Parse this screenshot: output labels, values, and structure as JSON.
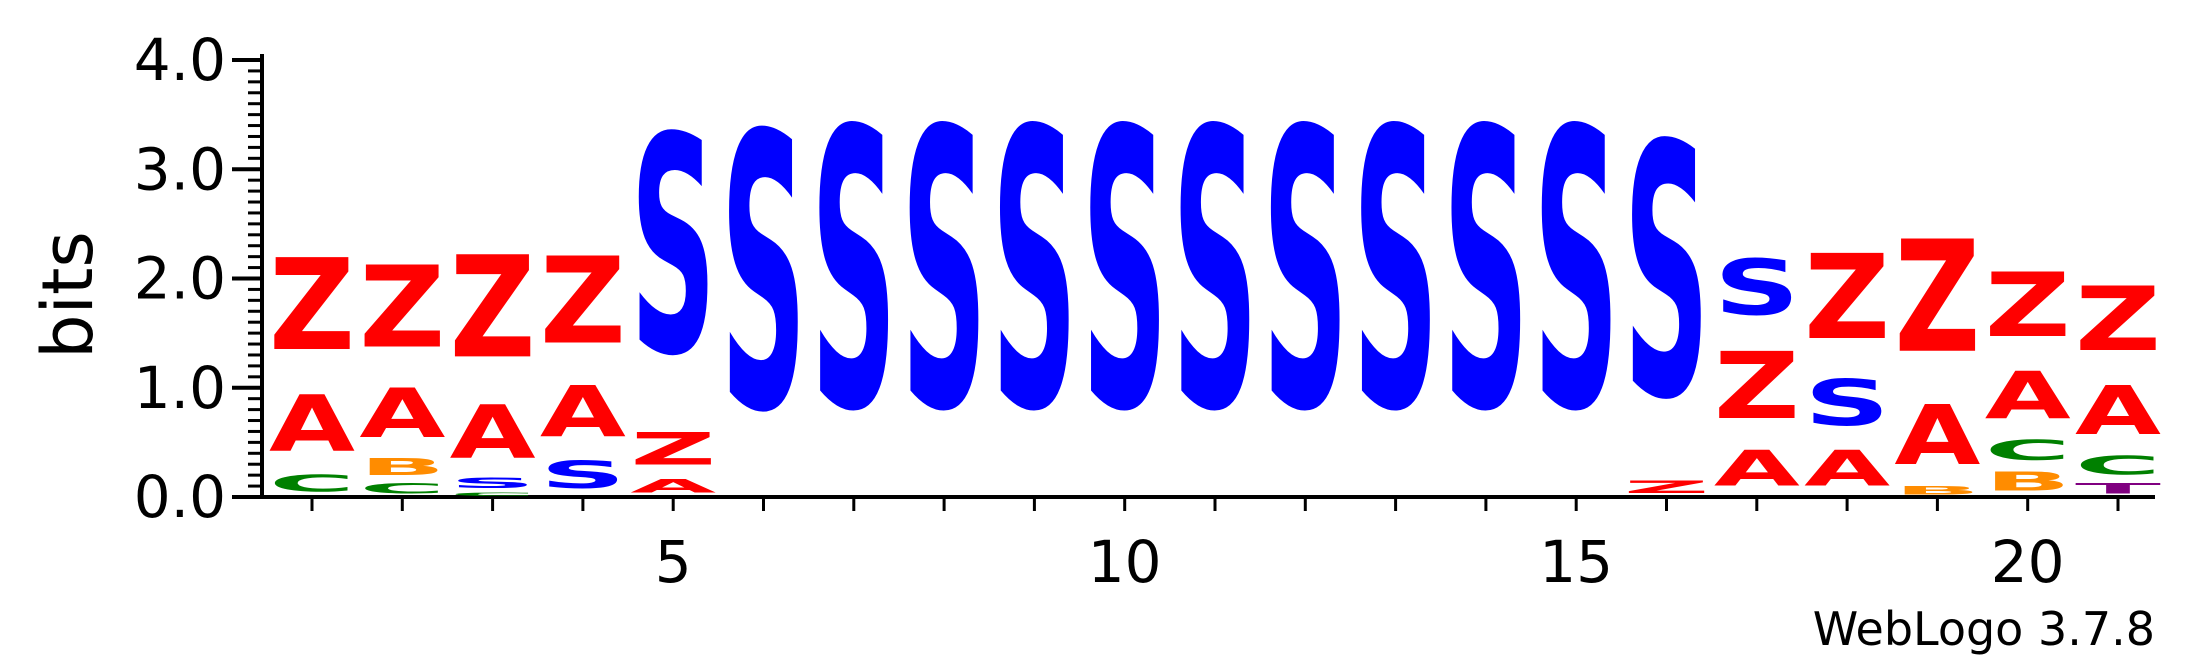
{
  "chart_data": {
    "type": "sequence-logo",
    "ylabel": "bits",
    "ylim": [
      0,
      4.0
    ],
    "y_ticks": [
      "0.0",
      "1.0",
      "2.0",
      "3.0",
      "4.0"
    ],
    "x_tick_labels": [
      {
        "pos": 5,
        "label": "5"
      },
      {
        "pos": 10,
        "label": "10"
      },
      {
        "pos": 15,
        "label": "15"
      },
      {
        "pos": 20,
        "label": "20"
      }
    ],
    "footer": "WebLogo 3.7.8",
    "colors": {
      "Z": "#ff0000",
      "A": "#ff0000",
      "S": "#0000ff",
      "C": "#008000",
      "B": "#ff8c00",
      "T": "#800080",
      "dot": "#ff0000"
    },
    "positions": [
      {
        "pos": 1,
        "stack": [
          {
            "letter": "C",
            "bits": 0.25
          },
          {
            "letter": "A",
            "bits": 0.83
          },
          {
            "letter": "Z",
            "bits": 1.35
          }
        ]
      },
      {
        "pos": 2,
        "stack": [
          {
            "letter": "C",
            "bits": 0.15
          },
          {
            "letter": "B",
            "bits": 0.25
          },
          {
            "letter": "A",
            "bits": 0.73
          },
          {
            "letter": "Z",
            "bits": 1.2
          }
        ]
      },
      {
        "pos": 3,
        "stack": [
          {
            "letter": "C",
            "bits": 0.05
          },
          {
            "letter": "S",
            "bits": 0.15
          },
          {
            "letter": "A",
            "bits": 0.78
          },
          {
            "letter": "Z",
            "bits": 1.5
          }
        ]
      },
      {
        "pos": 4,
        "stack": [
          {
            "letter": "S",
            "bits": 0.4
          },
          {
            "letter": "A",
            "bits": 0.75
          },
          {
            "letter": "Z",
            "bits": 1.28
          }
        ]
      },
      {
        "pos": 5,
        "stack": [
          {
            "letter": "A",
            "bits": 0.2
          },
          {
            "letter": "Z",
            "bits": 0.48
          },
          {
            "letter": "S",
            "bits": 3.2
          }
        ]
      },
      {
        "pos": 6,
        "stack": [
          {
            "letter": "S",
            "bits": 4.05
          }
        ]
      },
      {
        "pos": 7,
        "stack": [
          {
            "letter": "S",
            "bits": 4.1
          }
        ]
      },
      {
        "pos": 8,
        "stack": [
          {
            "letter": "S",
            "bits": 4.1
          }
        ]
      },
      {
        "pos": 9,
        "stack": [
          {
            "letter": "S",
            "bits": 4.1
          }
        ]
      },
      {
        "pos": 10,
        "stack": [
          {
            "letter": "S",
            "bits": 4.1
          }
        ]
      },
      {
        "pos": 11,
        "stack": [
          {
            "letter": "S",
            "bits": 4.1
          }
        ]
      },
      {
        "pos": 12,
        "stack": [
          {
            "letter": "S",
            "bits": 4.1
          }
        ]
      },
      {
        "pos": 13,
        "stack": [
          {
            "letter": "S",
            "bits": 4.1
          }
        ]
      },
      {
        "pos": 14,
        "stack": [
          {
            "letter": "S",
            "bits": 4.1
          }
        ]
      },
      {
        "pos": 15,
        "stack": [
          {
            "letter": "S",
            "bits": 4.1
          }
        ]
      },
      {
        "pos": 16,
        "stack": [
          {
            "letter": "Z",
            "bits": 0.18
          },
          {
            "letter": "S",
            "bits": 3.72
          }
        ]
      },
      {
        "pos": 17,
        "stack": [
          {
            "letter": "A",
            "bits": 0.52
          },
          {
            "letter": "Z",
            "bits": 0.98
          },
          {
            "letter": "S",
            "bits": 0.82
          }
        ]
      },
      {
        "pos": 18,
        "stack": [
          {
            "letter": "A",
            "bits": 0.52
          },
          {
            "letter": "S",
            "bits": 0.68
          },
          {
            "letter": "Z",
            "bits": 1.25
          }
        ]
      },
      {
        "pos": 19,
        "stack": [
          {
            "letter": "B",
            "bits": 0.12
          },
          {
            "letter": "A",
            "bits": 0.88
          },
          {
            "letter": "Z",
            "bits": 1.65
          }
        ]
      },
      {
        "pos": 20,
        "stack": [
          {
            "letter": "B",
            "bits": 0.28
          },
          {
            "letter": "C",
            "bits": 0.3
          },
          {
            "letter": "A",
            "bits": 0.7
          },
          {
            "letter": "Z",
            "bits": 0.95
          }
        ]
      },
      {
        "pos": 21,
        "stack": [
          {
            "letter": "T",
            "bits": 0.15
          },
          {
            "letter": "C",
            "bits": 0.28
          },
          {
            "letter": "A",
            "bits": 0.72
          },
          {
            "letter": "Z",
            "bits": 0.95
          }
        ]
      }
    ]
  }
}
